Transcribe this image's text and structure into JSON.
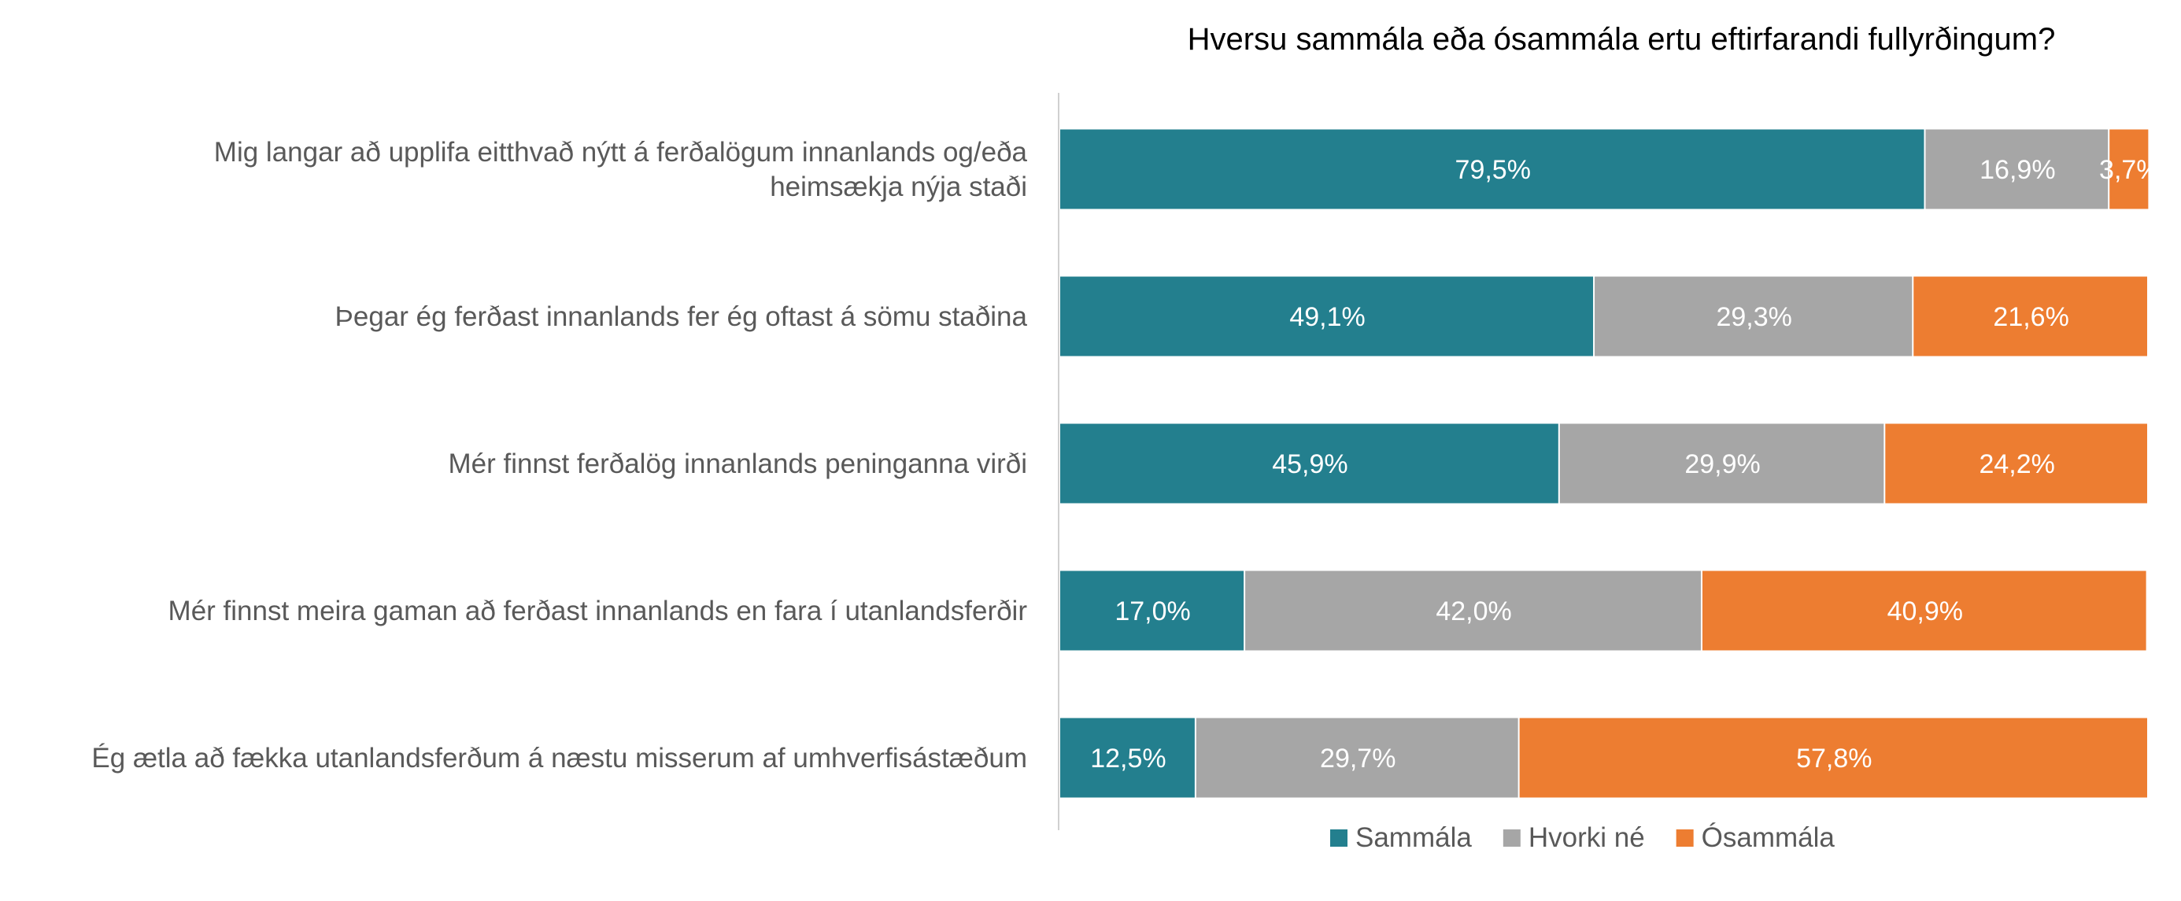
{
  "chart_data": {
    "type": "bar",
    "orientation": "horizontal",
    "stacked": true,
    "percent_stacked": true,
    "title": "Hversu sammála eða ósammála ertu eftirfarandi fullyrðingum?",
    "categories": [
      [
        "Mig langar að upplifa eitthvað nýtt á ferðalögum innanlands og/eða",
        "heimsækja nýja staði"
      ],
      [
        "Þegar ég ferðast innanlands fer ég oftast á sömu staðina"
      ],
      [
        "Mér finnst ferðalög innanlands peninganna virði"
      ],
      [
        "Mér finnst meira gaman að ferðast innanlands en fara í utanlandsferðir"
      ],
      [
        "Ég ætla að fækka utanlandsferðum á næstu misserum af umhverfisástæðum"
      ]
    ],
    "series": [
      {
        "name": "Sammála",
        "color": "#237F8E",
        "values": [
          79.5,
          49.1,
          45.9,
          17.0,
          12.5
        ],
        "labels": [
          "79,5%",
          "49,1%",
          "45,9%",
          "17,0%",
          "12,5%"
        ]
      },
      {
        "name": "Hvorki né",
        "color": "#A6A6A6",
        "values": [
          16.9,
          29.3,
          29.9,
          42.0,
          29.7
        ],
        "labels": [
          "16,9%",
          "29,3%",
          "29,9%",
          "42,0%",
          "29,7%"
        ]
      },
      {
        "name": "Ósammála",
        "color": "#ED7D31",
        "values": [
          3.7,
          21.6,
          24.2,
          40.9,
          57.8
        ],
        "labels": [
          "3,7%",
          "21,6%",
          "24,2%",
          "40,9%",
          "57,8%"
        ]
      }
    ],
    "xlim": [
      0,
      100
    ],
    "grid": false,
    "legend_position": "bottom"
  }
}
